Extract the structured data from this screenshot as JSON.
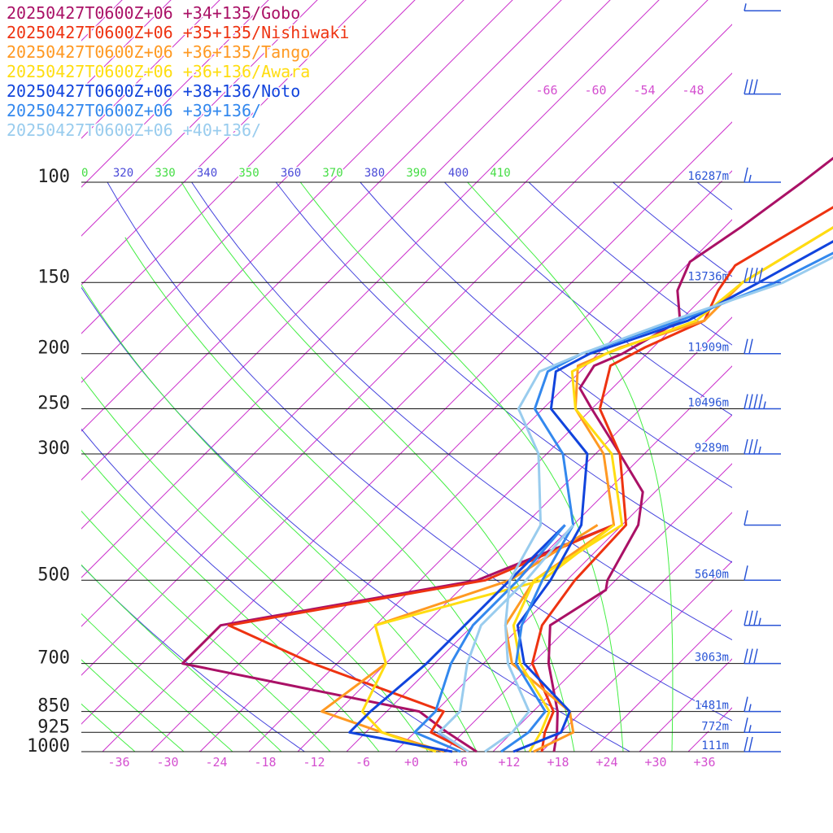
{
  "chart_data": {
    "type": "line",
    "title": "",
    "xlabel": "",
    "ylabel": "",
    "x_range": [
      -40,
      40
    ],
    "pressure_range": [
      1000,
      100
    ],
    "pressure_levels": [
      100,
      150,
      200,
      250,
      300,
      500,
      700,
      850,
      925,
      1000
    ],
    "pressure_tick_labels": [
      "100",
      "150",
      "200",
      "250",
      "300",
      "500",
      "700",
      "850",
      "925",
      "1000"
    ],
    "height_labels": [
      {
        "p": 100,
        "text": "16287m"
      },
      {
        "p": 150,
        "text": "13736m"
      },
      {
        "p": 200,
        "text": "11909m"
      },
      {
        "p": 250,
        "text": "10496m"
      },
      {
        "p": 300,
        "text": "9289m"
      },
      {
        "p": 500,
        "text": "5640m"
      },
      {
        "p": 700,
        "text": "3063m"
      },
      {
        "p": 850,
        "text": "1481m"
      },
      {
        "p": 925,
        "text": "772m"
      },
      {
        "p": 1000,
        "text": "111m"
      }
    ],
    "temp_ticks": [
      -36,
      -30,
      -24,
      -18,
      -12,
      -6,
      0,
      6,
      12,
      18,
      24,
      30,
      36
    ],
    "temp_tick_labels": [
      "-36",
      "-30",
      "-24",
      "-18",
      "-12",
      "-6",
      "+0",
      "+6",
      "+12",
      "+18",
      "+24",
      "+30",
      "+36"
    ],
    "upper_temp_labels": [
      "-66",
      "-60",
      "-54",
      "-48"
    ],
    "theta_labels": [
      {
        "text": "0",
        "color": "#44dd44"
      },
      {
        "text": "320",
        "color": "#4a4ad8"
      },
      {
        "text": "330",
        "color": "#44dd44"
      },
      {
        "text": "340",
        "color": "#4a4ad8"
      },
      {
        "text": "350",
        "color": "#44dd44"
      },
      {
        "text": "360",
        "color": "#4a4ad8"
      },
      {
        "text": "370",
        "color": "#44dd44"
      },
      {
        "text": "380",
        "color": "#4a4ad8"
      },
      {
        "text": "390",
        "color": "#44dd44"
      },
      {
        "text": "400",
        "color": "#4a4ad8"
      },
      {
        "text": "410",
        "color": "#44dd44"
      }
    ],
    "series": [
      {
        "name": "20250427T0600Z+06 +34+135/Gobo",
        "color": "#aa1166",
        "temperature": [
          [
            1000,
            17.5
          ],
          [
            925,
            15.5
          ],
          [
            850,
            13
          ],
          [
            700,
            6
          ],
          [
            600,
            1.5
          ],
          [
            520,
            4
          ],
          [
            500,
            3
          ],
          [
            400,
            0
          ],
          [
            350,
            -3.5
          ],
          [
            300,
            -11
          ],
          [
            250,
            -20
          ],
          [
            230,
            -24
          ],
          [
            210,
            -25
          ],
          [
            200,
            -23
          ],
          [
            175,
            -20
          ],
          [
            155,
            -24
          ],
          [
            138,
            -26
          ],
          [
            120,
            -24
          ],
          [
            100,
            -22
          ],
          [
            80,
            -20
          ],
          [
            60,
            -19
          ]
        ],
        "dewpoint": [
          [
            1000,
            8
          ],
          [
            925,
            2
          ],
          [
            850,
            -4
          ],
          [
            700,
            -39
          ],
          [
            600,
            -39
          ],
          [
            500,
            -13
          ],
          [
            400,
            -3
          ]
        ]
      },
      {
        "name": "20250427T0600Z+06 +35+135/Nishiwaki",
        "color": "#ee3311",
        "temperature": [
          [
            1000,
            16
          ],
          [
            925,
            14
          ],
          [
            850,
            12.5
          ],
          [
            700,
            4
          ],
          [
            600,
            0.5
          ],
          [
            500,
            -1
          ],
          [
            400,
            -1.5
          ],
          [
            300,
            -11
          ],
          [
            250,
            -19
          ],
          [
            210,
            -23
          ],
          [
            195,
            -21
          ],
          [
            175,
            -17
          ],
          [
            155,
            -19
          ],
          [
            140,
            -20
          ],
          [
            100,
            -13
          ],
          [
            80,
            -9
          ],
          [
            60,
            -5
          ]
        ],
        "dewpoint": [
          [
            1000,
            7
          ],
          [
            925,
            0
          ],
          [
            850,
            -1
          ],
          [
            700,
            -23
          ],
          [
            600,
            -38
          ],
          [
            500,
            -12
          ],
          [
            400,
            -3
          ]
        ]
      },
      {
        "name": "20250427T0600Z+06 +36+135/Tango",
        "color": "#ff9922",
        "temperature": [
          [
            1000,
            15
          ],
          [
            925,
            17.5
          ],
          [
            850,
            14.5
          ],
          [
            700,
            1.5
          ],
          [
            600,
            -4
          ],
          [
            500,
            -6
          ],
          [
            400,
            -3
          ],
          [
            300,
            -13
          ],
          [
            250,
            -22
          ],
          [
            210,
            -27
          ],
          [
            195,
            -24
          ],
          [
            175,
            -17
          ],
          [
            150,
            -17
          ],
          [
            100,
            -9
          ],
          [
            80,
            -5
          ],
          [
            60,
            -3
          ]
        ],
        "dewpoint": [
          [
            1000,
            4
          ],
          [
            925,
            -6
          ],
          [
            850,
            -16
          ],
          [
            700,
            -14
          ],
          [
            600,
            -20
          ],
          [
            500,
            -9
          ],
          [
            400,
            -5
          ]
        ]
      },
      {
        "name": "20250427T0600Z+06 +36+136/Awara",
        "color": "#ffdd11",
        "temperature": [
          [
            1000,
            14.5
          ],
          [
            925,
            13.5
          ],
          [
            850,
            12
          ],
          [
            700,
            2.5
          ],
          [
            600,
            -3
          ],
          [
            500,
            -6
          ],
          [
            400,
            -2
          ],
          [
            300,
            -12
          ],
          [
            250,
            -22
          ],
          [
            215,
            -27
          ],
          [
            200,
            -25
          ],
          [
            175,
            -18
          ],
          [
            150,
            -17
          ],
          [
            100,
            -9
          ],
          [
            80,
            -6
          ],
          [
            60,
            -4
          ]
        ],
        "dewpoint": [
          [
            1000,
            3
          ],
          [
            925,
            -6
          ],
          [
            850,
            -11
          ],
          [
            700,
            -14
          ],
          [
            600,
            -20
          ],
          [
            500,
            -5
          ],
          [
            400,
            -3
          ]
        ]
      },
      {
        "name": "20250427T0600Z+06 +38+136/Noto",
        "color": "#1144dd",
        "temperature": [
          [
            1000,
            12.5
          ],
          [
            925,
            16
          ],
          [
            850,
            14.5
          ],
          [
            700,
            3
          ],
          [
            600,
            -2.5
          ],
          [
            500,
            -4
          ],
          [
            400,
            -7
          ],
          [
            300,
            -15
          ],
          [
            250,
            -25
          ],
          [
            215,
            -29
          ],
          [
            200,
            -27
          ],
          [
            175,
            -19
          ],
          [
            150,
            -15
          ],
          [
            100,
            -5
          ],
          [
            80,
            -1
          ],
          [
            60,
            3
          ]
        ],
        "dewpoint": [
          [
            1000,
            5
          ],
          [
            925,
            -10
          ],
          [
            850,
            -10
          ],
          [
            700,
            -9
          ],
          [
            600,
            -9
          ],
          [
            500,
            -9
          ],
          [
            400,
            -9
          ]
        ]
      },
      {
        "name": "20250427T0600Z+06 +39+136/",
        "color": "#3388ee",
        "temperature": [
          [
            1000,
            11
          ],
          [
            925,
            12
          ],
          [
            850,
            11.5
          ],
          [
            700,
            2
          ],
          [
            600,
            -2
          ],
          [
            500,
            -5
          ],
          [
            400,
            -8
          ],
          [
            300,
            -18
          ],
          [
            250,
            -27
          ],
          [
            215,
            -30
          ],
          [
            200,
            -28
          ],
          [
            175,
            -20
          ],
          [
            150,
            -13
          ],
          [
            100,
            -1
          ],
          [
            80,
            3
          ],
          [
            60,
            5
          ]
        ],
        "dewpoint": [
          [
            1000,
            6
          ],
          [
            925,
            -2
          ],
          [
            850,
            -2
          ],
          [
            700,
            -6
          ],
          [
            600,
            -8
          ],
          [
            500,
            -8
          ],
          [
            400,
            -9
          ]
        ]
      },
      {
        "name": "20250427T0600Z+06 +40+136/",
        "color": "#99ccee",
        "temperature": [
          [
            1000,
            9
          ],
          [
            925,
            10
          ],
          [
            850,
            9.5
          ],
          [
            700,
            1
          ],
          [
            600,
            -4
          ],
          [
            500,
            -9
          ],
          [
            400,
            -12
          ],
          [
            300,
            -21
          ],
          [
            250,
            -29
          ],
          [
            215,
            -31
          ],
          [
            200,
            -28
          ],
          [
            175,
            -21
          ],
          [
            150,
            -12
          ],
          [
            100,
            0
          ],
          [
            80,
            5
          ],
          [
            60,
            10
          ]
        ],
        "dewpoint": [
          [
            1000,
            7
          ],
          [
            925,
            1
          ],
          [
            850,
            1
          ],
          [
            700,
            -4
          ],
          [
            600,
            -7
          ],
          [
            500,
            -7
          ],
          [
            400,
            -8
          ]
        ]
      }
    ],
    "wind_barbs": [
      {
        "p": 1000,
        "speed_kt": 20
      },
      {
        "p": 925,
        "speed_kt": 15
      },
      {
        "p": 850,
        "speed_kt": 15
      },
      {
        "p": 700,
        "speed_kt": 30
      },
      {
        "p": 600,
        "speed_kt": 35
      },
      {
        "p": 500,
        "speed_kt": 10
      },
      {
        "p": 400,
        "speed_kt": 10
      },
      {
        "p": 300,
        "speed_kt": 35
      },
      {
        "p": 250,
        "speed_kt": 45
      },
      {
        "p": 200,
        "speed_kt": 20
      },
      {
        "p": 150,
        "speed_kt": 40
      },
      {
        "p": 100,
        "speed_kt": 15
      },
      {
        "p": 70,
        "speed_kt": 30
      },
      {
        "p": 50,
        "speed_kt": 5
      }
    ],
    "grid": true,
    "legend_placement": "top-left"
  },
  "colors": {
    "isobar": "#111111",
    "isotherm": "#cc33cc",
    "dry_adiabat": "#4444dd",
    "moist_adiabat": "#44ee44",
    "wind_barb": "#2b56d6"
  }
}
